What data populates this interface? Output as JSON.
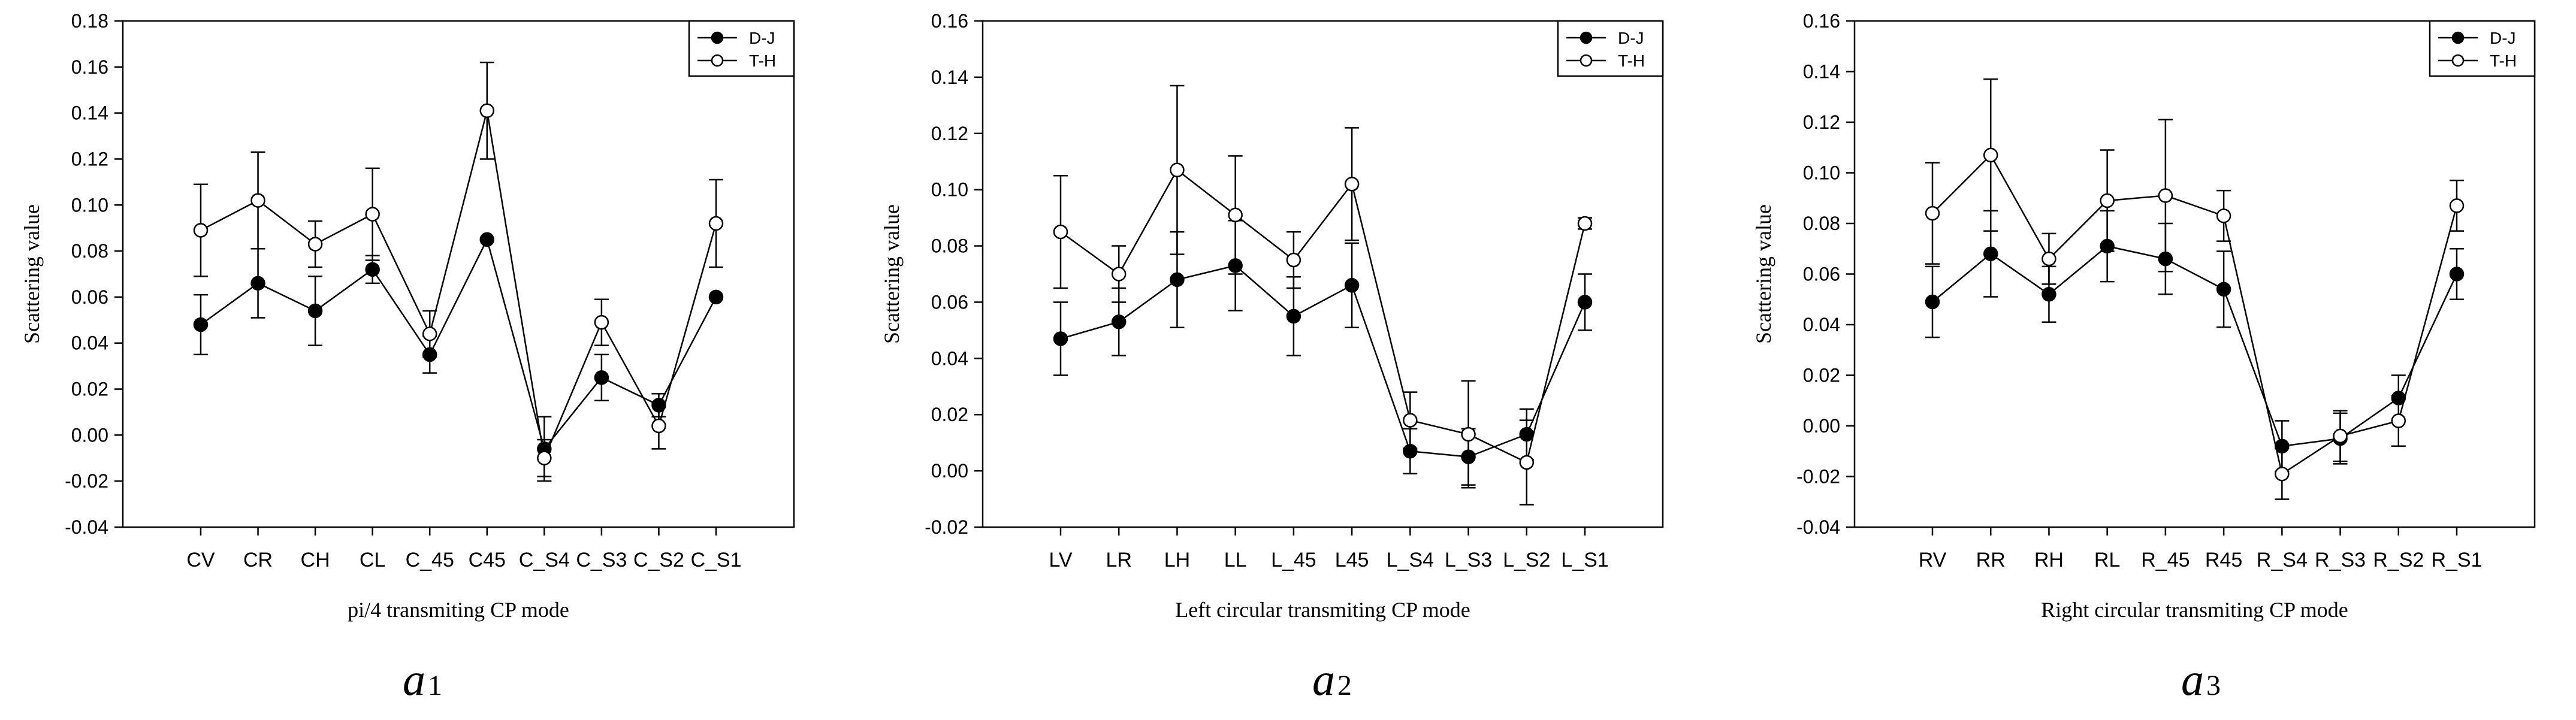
{
  "chart_data": [
    {
      "type": "line",
      "panel_label": "a",
      "panel_subscript": "1",
      "xlabel": "pi/4 transmiting CP mode",
      "ylabel": "Scattering value",
      "ylim": [
        -0.04,
        0.18
      ],
      "yticks": [
        -0.04,
        -0.02,
        0.0,
        0.02,
        0.04,
        0.06,
        0.08,
        0.1,
        0.12,
        0.14,
        0.16,
        0.18
      ],
      "categories": [
        "CV",
        "CR",
        "CH",
        "CL",
        "C_45",
        "C45",
        "C_S4",
        "C_S3",
        "C_S2",
        "C_S1"
      ],
      "legend_position": "top-right",
      "series": [
        {
          "name": "D-J",
          "marker": "filled",
          "values": [
            0.048,
            0.066,
            0.054,
            0.072,
            0.035,
            0.085,
            -0.006,
            0.025,
            0.013,
            0.06
          ],
          "errors": [
            0.013,
            0.015,
            0.015,
            0.006,
            0.008,
            0.0,
            0.014,
            0.01,
            0.005,
            0.0
          ]
        },
        {
          "name": "T-H",
          "marker": "open",
          "values": [
            0.089,
            0.102,
            0.083,
            0.096,
            0.044,
            0.141,
            -0.01,
            0.049,
            0.004,
            0.092
          ],
          "errors": [
            0.02,
            0.021,
            0.01,
            0.02,
            0.01,
            0.021,
            0.008,
            0.01,
            0.01,
            0.019
          ]
        }
      ]
    },
    {
      "type": "line",
      "panel_label": "a",
      "panel_subscript": "2",
      "xlabel": "Left circular transmiting CP mode",
      "ylabel": "Scattering value",
      "ylim": [
        -0.02,
        0.16
      ],
      "yticks": [
        -0.02,
        0.0,
        0.02,
        0.04,
        0.06,
        0.08,
        0.1,
        0.12,
        0.14,
        0.16
      ],
      "categories": [
        "LV",
        "LR",
        "LH",
        "LL",
        "L_45",
        "L45",
        "L_S4",
        "L_S3",
        "L_S2",
        "L_S1"
      ],
      "legend_position": "top-right",
      "series": [
        {
          "name": "D-J",
          "marker": "filled",
          "values": [
            0.047,
            0.053,
            0.068,
            0.073,
            0.055,
            0.066,
            0.007,
            0.005,
            0.013,
            0.06
          ],
          "errors": [
            0.013,
            0.012,
            0.017,
            0.016,
            0.014,
            0.015,
            0.008,
            0.01,
            0.009,
            0.01
          ]
        },
        {
          "name": "T-H",
          "marker": "open",
          "values": [
            0.085,
            0.07,
            0.107,
            0.091,
            0.075,
            0.102,
            0.018,
            0.013,
            0.003,
            0.088
          ],
          "errors": [
            0.02,
            0.01,
            0.03,
            0.021,
            0.01,
            0.02,
            0.01,
            0.019,
            0.015,
            0.002
          ]
        }
      ]
    },
    {
      "type": "line",
      "panel_label": "a",
      "panel_subscript": "3",
      "xlabel": "Right circular transmiting CP mode",
      "ylabel": "Scattering value",
      "ylim": [
        -0.04,
        0.16
      ],
      "yticks": [
        -0.04,
        -0.02,
        0.0,
        0.02,
        0.04,
        0.06,
        0.08,
        0.1,
        0.12,
        0.14,
        0.16
      ],
      "categories": [
        "RV",
        "RR",
        "RH",
        "RL",
        "R_45",
        "R45",
        "R_S4",
        "R_S3",
        "R_S2",
        "R_S1"
      ],
      "legend_position": "top-right",
      "series": [
        {
          "name": "D-J",
          "marker": "filled",
          "values": [
            0.049,
            0.068,
            0.052,
            0.071,
            0.066,
            0.054,
            -0.008,
            -0.005,
            0.011,
            0.06
          ],
          "errors": [
            0.014,
            0.017,
            0.011,
            0.014,
            0.014,
            0.015,
            0.01,
            0.01,
            0.009,
            0.01
          ]
        },
        {
          "name": "T-H",
          "marker": "open",
          "values": [
            0.084,
            0.107,
            0.066,
            0.089,
            0.091,
            0.083,
            -0.019,
            -0.004,
            0.002,
            0.087
          ],
          "errors": [
            0.02,
            0.03,
            0.01,
            0.02,
            0.03,
            0.01,
            0.01,
            0.01,
            0.01,
            0.01
          ]
        }
      ]
    }
  ]
}
